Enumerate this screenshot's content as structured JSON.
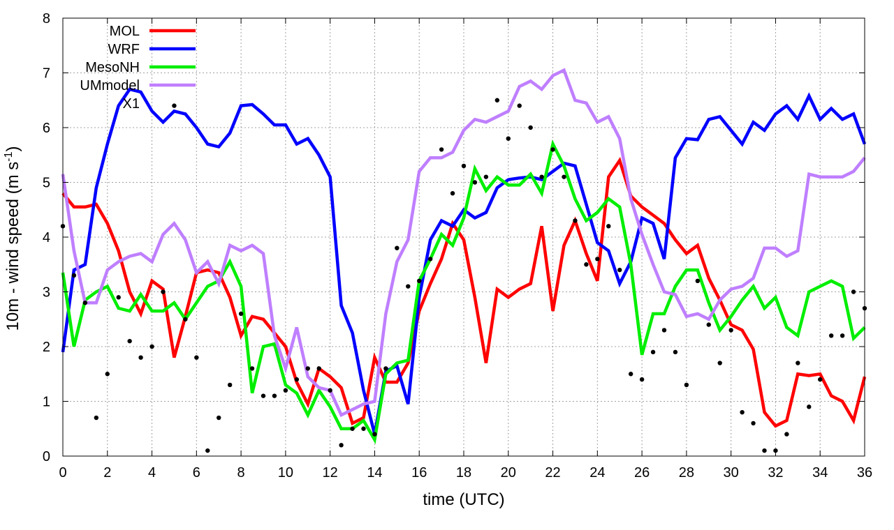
{
  "chart_data": {
    "type": "line",
    "xlabel": "time (UTC)",
    "ylabel_main": "10m - wind speed  (m s",
    "ylabel_sup": "-1",
    "ylabel_close": ")",
    "xlim": [
      0,
      36
    ],
    "ylim": [
      0,
      8
    ],
    "xticks": [
      "0",
      "2",
      "4",
      "6",
      "8",
      "10",
      "12",
      "14",
      "16",
      "18",
      "20",
      "22",
      "24",
      "26",
      "28",
      "30",
      "32",
      "34",
      "36"
    ],
    "yticks": [
      "0",
      "1",
      "2",
      "3",
      "4",
      "5",
      "6",
      "7",
      "8"
    ],
    "grid": true,
    "legend_position": "top-left",
    "x": [
      0,
      0.5,
      1,
      1.5,
      2,
      2.5,
      3,
      3.5,
      4,
      4.5,
      5,
      5.5,
      6,
      6.5,
      7,
      7.5,
      8,
      8.5,
      9,
      9.5,
      10,
      10.5,
      11,
      11.5,
      12,
      12.5,
      13,
      13.5,
      14,
      14.5,
      15,
      15.5,
      16,
      16.5,
      17,
      17.5,
      18,
      18.5,
      19,
      19.5,
      20,
      20.5,
      21,
      21.5,
      22,
      22.5,
      23,
      23.5,
      24,
      24.5,
      25,
      25.5,
      26,
      26.5,
      27,
      27.5,
      28,
      28.5,
      29,
      29.5,
      30,
      30.5,
      31,
      31.5,
      32,
      32.5,
      33,
      33.5,
      34,
      34.5,
      35,
      35.5,
      36
    ],
    "series": [
      {
        "name": "MOL",
        "color": "#ff0000",
        "values": [
          4.8,
          4.55,
          4.55,
          4.6,
          4.25,
          3.75,
          3.0,
          2.6,
          3.2,
          3.05,
          1.8,
          2.55,
          3.35,
          3.4,
          3.35,
          2.9,
          2.2,
          2.55,
          2.5,
          2.25,
          2.0,
          1.35,
          0.95,
          1.6,
          1.45,
          1.25,
          0.6,
          0.7,
          1.8,
          1.35,
          1.35,
          1.7,
          2.65,
          3.15,
          3.6,
          4.25,
          3.95,
          2.9,
          1.7,
          3.05,
          2.9,
          3.05,
          3.15,
          4.2,
          2.65,
          3.85,
          4.3,
          3.7,
          3.2,
          5.1,
          5.4,
          4.75,
          4.55,
          4.4,
          4.25,
          3.95,
          3.7,
          3.85,
          3.25,
          2.85,
          2.4,
          2.3,
          1.95,
          0.8,
          0.55,
          0.65,
          1.5,
          1.47,
          1.5,
          1.1,
          1.0,
          0.65,
          1.45
        ]
      },
      {
        "name": "WRF",
        "color": "#0000ff",
        "values": [
          1.9,
          3.4,
          3.5,
          4.9,
          5.7,
          6.4,
          6.7,
          6.65,
          6.3,
          6.1,
          6.3,
          6.25,
          6.0,
          5.7,
          5.65,
          5.9,
          6.4,
          6.42,
          6.25,
          6.05,
          6.05,
          5.7,
          5.8,
          5.5,
          5.1,
          2.75,
          2.25,
          1.2,
          0.4,
          1.55,
          1.65,
          0.95,
          2.9,
          3.95,
          4.3,
          4.2,
          4.5,
          4.35,
          4.45,
          4.9,
          5.05,
          5.08,
          5.1,
          5.05,
          5.2,
          5.35,
          5.3,
          4.6,
          3.9,
          3.75,
          3.15,
          3.55,
          4.35,
          4.25,
          3.6,
          5.45,
          5.8,
          5.78,
          6.15,
          6.2,
          5.95,
          5.7,
          6.1,
          5.95,
          6.25,
          6.4,
          6.15,
          6.58,
          6.15,
          6.35,
          6.15,
          6.25,
          5.7
        ]
      },
      {
        "name": "MesoNH",
        "color": "#00ee00",
        "values": [
          3.35,
          2.0,
          2.85,
          3.0,
          3.1,
          2.7,
          2.65,
          2.95,
          2.65,
          2.65,
          2.8,
          2.5,
          2.8,
          3.1,
          3.2,
          3.55,
          3.1,
          1.15,
          2.0,
          2.05,
          1.3,
          1.15,
          0.75,
          1.2,
          0.9,
          0.5,
          0.5,
          0.65,
          0.3,
          1.5,
          1.7,
          1.75,
          3.2,
          3.6,
          4.05,
          3.85,
          4.35,
          5.25,
          4.85,
          5.1,
          4.95,
          4.95,
          5.15,
          4.8,
          5.7,
          5.3,
          4.7,
          4.3,
          4.45,
          4.7,
          4.55,
          3.5,
          1.85,
          2.6,
          2.6,
          3.1,
          3.4,
          3.4,
          2.8,
          2.3,
          2.55,
          2.85,
          3.1,
          2.7,
          2.9,
          2.35,
          2.2,
          3.0,
          3.1,
          3.2,
          3.1,
          2.15,
          2.35
        ]
      },
      {
        "name": "UMmodel",
        "color": "#bf7fff",
        "values": [
          5.15,
          3.75,
          2.8,
          2.8,
          3.4,
          3.55,
          3.65,
          3.7,
          3.55,
          4.05,
          4.25,
          3.95,
          3.35,
          3.55,
          3.15,
          3.85,
          3.75,
          3.85,
          3.7,
          2.2,
          1.6,
          2.35,
          1.45,
          1.25,
          1.2,
          0.75,
          0.85,
          0.95,
          1.0,
          2.6,
          3.55,
          3.95,
          5.2,
          5.45,
          5.45,
          5.55,
          5.95,
          6.15,
          6.1,
          6.2,
          6.3,
          6.75,
          6.85,
          6.7,
          6.95,
          7.05,
          6.5,
          6.45,
          6.1,
          6.2,
          5.8,
          4.7,
          4.05,
          3.5,
          3.0,
          2.95,
          2.55,
          2.6,
          2.5,
          2.85,
          3.05,
          3.1,
          3.25,
          3.8,
          3.8,
          3.65,
          3.75,
          5.15,
          5.1,
          5.1,
          5.1,
          5.2,
          5.45
        ]
      },
      {
        "name": "X1",
        "color": "#000000",
        "values": [
          4.2,
          3.3,
          2.8,
          0.7,
          1.5,
          2.9,
          2.1,
          1.8,
          2.0,
          3.0,
          6.4,
          2.5,
          1.8,
          0.1,
          0.7,
          1.3,
          2.6,
          1.6,
          1.1,
          1.1,
          1.2,
          1.4,
          1.6,
          1.6,
          1.2,
          0.2,
          0.5,
          0.5,
          0.4,
          1.6,
          3.8,
          3.1,
          3.2,
          3.6,
          5.6,
          4.8,
          5.3,
          5.0,
          5.1,
          6.5,
          5.8,
          6.4,
          6.0,
          5.1,
          5.6,
          5.1,
          4.3,
          3.5,
          3.6,
          4.2,
          3.4,
          1.5,
          1.4,
          1.9,
          2.3,
          1.9,
          1.3,
          3.2,
          2.4,
          1.7,
          2.3,
          0.8,
          0.6,
          0.1,
          0.1,
          0.4,
          1.7,
          0.9,
          1.4,
          2.2,
          2.2,
          3.0,
          2.7
        ]
      }
    ]
  }
}
